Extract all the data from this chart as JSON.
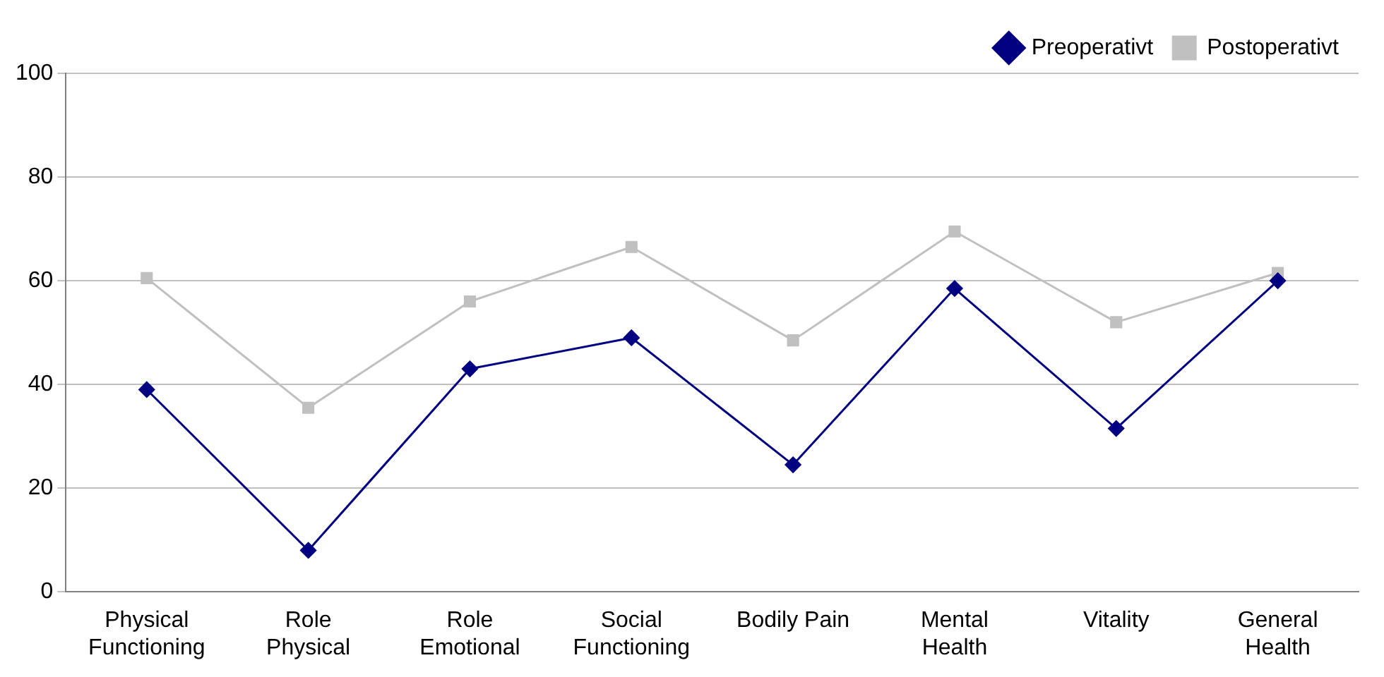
{
  "chart_data": {
    "type": "line",
    "categories": [
      "Physical Functioning",
      "Role Physical",
      "Role Emotional",
      "Social Functioning",
      "Bodily Pain",
      "Mental Health",
      "Vitality",
      "General Health"
    ],
    "series": [
      {
        "name": "Preoperativt",
        "color": "#000080",
        "marker": "diamond",
        "values": [
          39,
          8,
          43,
          49,
          24.5,
          58.5,
          31.5,
          60
        ]
      },
      {
        "name": "Postoperativt",
        "color": "#c0c0c0",
        "marker": "square",
        "values": [
          60.5,
          35.5,
          56,
          66.5,
          48.5,
          69.5,
          52,
          61.5
        ]
      }
    ],
    "ylim": [
      0,
      100
    ],
    "yticks": [
      0,
      20,
      40,
      60,
      80,
      100
    ],
    "grid": "y",
    "legend": "top right",
    "line_style": "solid"
  }
}
